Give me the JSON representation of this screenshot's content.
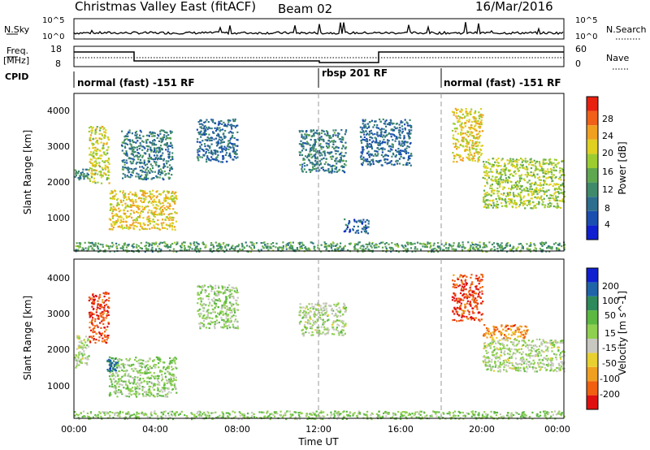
{
  "header": {
    "station": "Christmas Valley East (fitACF)",
    "beam": "Beam 02",
    "date": "16/Mar/2016"
  },
  "mini_panels": {
    "nsky_label": "N.Sky",
    "nsky_ticks": [
      "10^5",
      "10^0"
    ],
    "nsearch_label": "N.Search",
    "nsearch_ticks": [
      "10^5",
      "10^0"
    ],
    "freq_label_1": "Freq.",
    "freq_label_2": "[MHz]",
    "freq_ticks": [
      "18",
      "8"
    ],
    "nave_label": "Nave",
    "nave_ticks": [
      "60",
      "0"
    ],
    "cpid_label": "CPID",
    "cpid_segments": [
      {
        "label": "normal (fast) -151 RF",
        "start_h": 0,
        "end_h": 12
      },
      {
        "label": "rbsp 201 RF",
        "start_h": 12,
        "end_h": 18
      },
      {
        "label": "normal (fast) -151 RF",
        "start_h": 18,
        "end_h": 24
      }
    ]
  },
  "colors": {
    "power_scale": [
      "#1020d0",
      "#1a4fb0",
      "#2d6e8e",
      "#3f8a6a",
      "#5fa850",
      "#9ccc30",
      "#e0d020",
      "#f0a020",
      "#f06018",
      "#e82010"
    ],
    "velocity_scale": [
      "#1020d0",
      "#1f63a8",
      "#2e8a5a",
      "#5cb840",
      "#8fd050",
      "#c8c8c0",
      "#e8d030",
      "#f0a020",
      "#f06010",
      "#e01010"
    ]
  },
  "chart_data": [
    {
      "type": "heatmap",
      "name": "power",
      "ylabel": "Slant Range [km]",
      "yticks": [
        "1000",
        "2000",
        "3000",
        "4000"
      ],
      "ylim": [
        180,
        4600
      ],
      "xlim": [
        0,
        24
      ],
      "colorbar_label": "Power [dB]",
      "colorbar_ticks": [
        "4",
        "8",
        "12",
        "16",
        "20",
        "24",
        "28"
      ],
      "colorbar_range": [
        0,
        30
      ],
      "regions": [
        {
          "t": [
            0.0,
            0.7
          ],
          "r": [
            2200,
            2500
          ],
          "v": 10
        },
        {
          "t": [
            0.7,
            1.7
          ],
          "r": [
            2100,
            3700
          ],
          "v": 18
        },
        {
          "t": [
            1.7,
            5.0
          ],
          "r": [
            800,
            1900
          ],
          "v": 20
        },
        {
          "t": [
            2.3,
            4.8
          ],
          "r": [
            2200,
            3600
          ],
          "v": 9
        },
        {
          "t": [
            6.0,
            8.0
          ],
          "r": [
            2700,
            3900
          ],
          "v": 7
        },
        {
          "t": [
            11.0,
            13.3
          ],
          "r": [
            2400,
            3600
          ],
          "v": 9
        },
        {
          "t": [
            13.2,
            14.4
          ],
          "r": [
            700,
            1100
          ],
          "v": 6
        },
        {
          "t": [
            14.0,
            16.5
          ],
          "r": [
            2600,
            3900
          ],
          "v": 7
        },
        {
          "t": [
            18.5,
            20.0
          ],
          "r": [
            2700,
            4200
          ],
          "v": 20
        },
        {
          "t": [
            20.0,
            24.0
          ],
          "r": [
            1400,
            2800
          ],
          "v": 17
        },
        {
          "t": [
            0.0,
            24.0
          ],
          "r": [
            180,
            450
          ],
          "v": 12
        }
      ]
    },
    {
      "type": "heatmap",
      "name": "velocity",
      "ylabel": "Slant Range [km]",
      "yticks": [
        "1000",
        "2000",
        "3000",
        "4000"
      ],
      "ylim": [
        180,
        4600
      ],
      "xlim": [
        0,
        24
      ],
      "xlabel": "Time UT",
      "xticks": [
        "00:00",
        "04:00",
        "08:00",
        "12:00",
        "16:00",
        "20:00",
        "00:00"
      ],
      "colorbar_label": "Velocity [m s^-1]",
      "colorbar_ticks": [
        "200",
        "100",
        "50",
        "15",
        "-15",
        "-50",
        "-100",
        "-200"
      ],
      "regions": [
        {
          "t": [
            0.0,
            0.7
          ],
          "r": [
            1600,
            2500
          ],
          "v": 0
        },
        {
          "t": [
            0.7,
            1.7
          ],
          "r": [
            2300,
            3700
          ],
          "v": -200
        },
        {
          "t": [
            1.7,
            5.0
          ],
          "r": [
            800,
            1900
          ],
          "v": 30
        },
        {
          "t": [
            1.6,
            2.1
          ],
          "r": [
            1500,
            1900
          ],
          "v": 150
        },
        {
          "t": [
            6.0,
            8.0
          ],
          "r": [
            2700,
            3900
          ],
          "v": 20
        },
        {
          "t": [
            11.0,
            13.3
          ],
          "r": [
            2500,
            3400
          ],
          "v": 0
        },
        {
          "t": [
            18.5,
            20.0
          ],
          "r": [
            2900,
            4200
          ],
          "v": -200
        },
        {
          "t": [
            20.0,
            22.2
          ],
          "r": [
            2400,
            2800
          ],
          "v": -150
        },
        {
          "t": [
            20.0,
            24.0
          ],
          "r": [
            1500,
            2400
          ],
          "v": 0
        },
        {
          "t": [
            0.0,
            24.0
          ],
          "r": [
            180,
            400
          ],
          "v": 30
        }
      ]
    }
  ]
}
